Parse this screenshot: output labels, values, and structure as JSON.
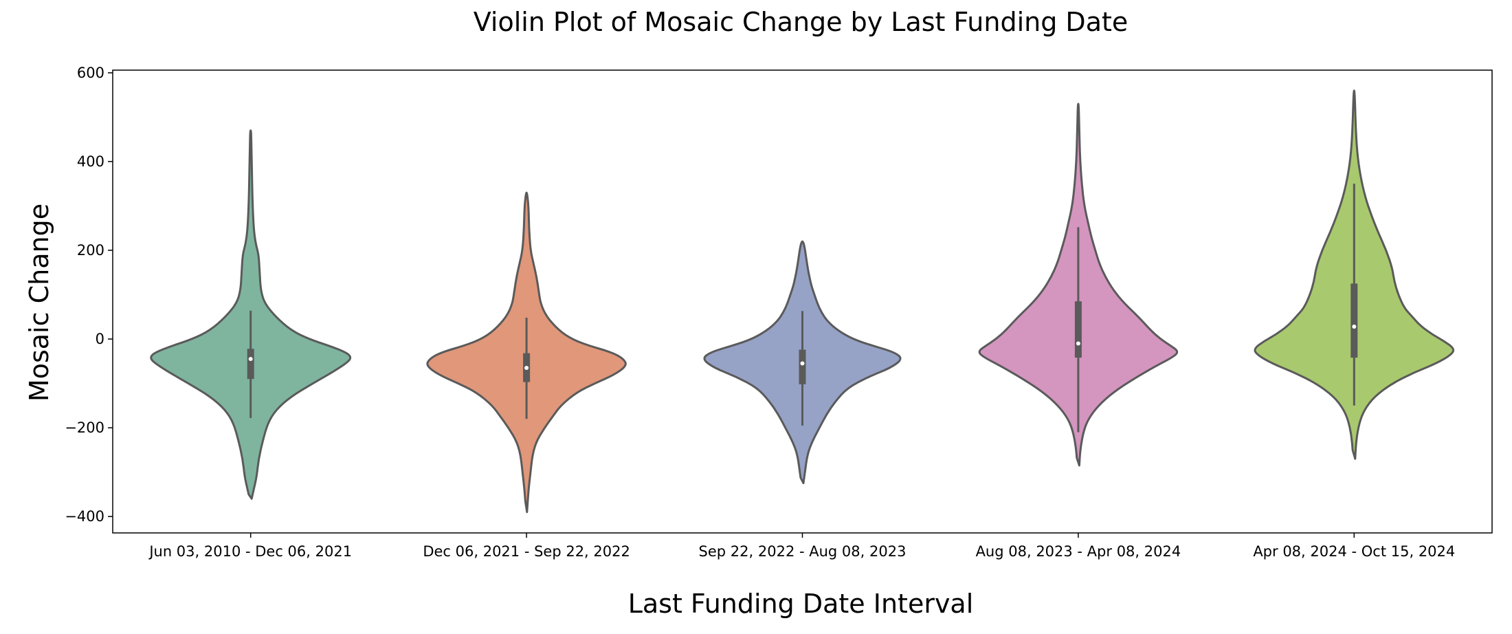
{
  "chart_data": {
    "type": "violin",
    "title": "Violin Plot of Mosaic Change by Last Funding Date",
    "xlabel": "Last Funding Date Interval",
    "ylabel": "Mosaic Change",
    "ylim": [
      -437,
      606
    ],
    "yticks": [
      -400,
      -200,
      0,
      200,
      400,
      600
    ],
    "ytick_labels": [
      "−400",
      "−200",
      "0",
      "200",
      "400",
      "600"
    ],
    "grid": false,
    "legend": "none",
    "categories": [
      "Jun 03, 2010 - Dec 06, 2021",
      "Dec 06, 2021 - Sep 22, 2022",
      "Sep 22, 2022 - Aug 08, 2023",
      "Aug 08, 2023 - Apr 08, 2024",
      "Apr 08, 2024 - Oct 15, 2024"
    ],
    "colors": [
      "#7fb59f",
      "#e0977a",
      "#96a2c6",
      "#d495bf",
      "#a9c96e"
    ],
    "line_color": "#5a5a5a",
    "violins": [
      {
        "min": -360,
        "max": 470,
        "q1": -90,
        "median": -45,
        "q3": -22,
        "whisker_low": -178,
        "whisker_high": 64,
        "profile": [
          [
            -360,
            0.01
          ],
          [
            -340,
            0.03
          ],
          [
            -310,
            0.06
          ],
          [
            -270,
            0.08
          ],
          [
            -230,
            0.12
          ],
          [
            -190,
            0.17
          ],
          [
            -160,
            0.25
          ],
          [
            -130,
            0.4
          ],
          [
            -100,
            0.62
          ],
          [
            -70,
            0.85
          ],
          [
            -50,
            0.98
          ],
          [
            -40,
            1.0
          ],
          [
            -30,
            0.95
          ],
          [
            -15,
            0.78
          ],
          [
            0,
            0.58
          ],
          [
            20,
            0.4
          ],
          [
            50,
            0.25
          ],
          [
            80,
            0.14
          ],
          [
            110,
            0.1
          ],
          [
            150,
            0.09
          ],
          [
            190,
            0.08
          ],
          [
            215,
            0.05
          ],
          [
            250,
            0.03
          ],
          [
            300,
            0.02
          ],
          [
            380,
            0.012
          ],
          [
            430,
            0.008
          ],
          [
            470,
            0.005
          ]
        ]
      },
      {
        "min": -390,
        "max": 330,
        "q1": -97,
        "median": -65,
        "q3": -32,
        "whisker_low": -180,
        "whisker_high": 48,
        "profile": [
          [
            -390,
            0.005
          ],
          [
            -340,
            0.02
          ],
          [
            -300,
            0.04
          ],
          [
            -260,
            0.06
          ],
          [
            -230,
            0.1
          ],
          [
            -200,
            0.18
          ],
          [
            -175,
            0.26
          ],
          [
            -150,
            0.34
          ],
          [
            -120,
            0.5
          ],
          [
            -100,
            0.68
          ],
          [
            -80,
            0.88
          ],
          [
            -60,
            1.0
          ],
          [
            -45,
            0.97
          ],
          [
            -30,
            0.85
          ],
          [
            -15,
            0.62
          ],
          [
            0,
            0.45
          ],
          [
            20,
            0.32
          ],
          [
            50,
            0.2
          ],
          [
            80,
            0.14
          ],
          [
            110,
            0.12
          ],
          [
            140,
            0.1
          ],
          [
            170,
            0.07
          ],
          [
            200,
            0.04
          ],
          [
            250,
            0.025
          ],
          [
            300,
            0.02
          ],
          [
            330,
            0.005
          ]
        ]
      },
      {
        "min": -325,
        "max": 220,
        "q1": -102,
        "median": -55,
        "q3": -24,
        "whisker_low": -195,
        "whisker_high": 63,
        "profile": [
          [
            -325,
            0.01
          ],
          [
            -300,
            0.025
          ],
          [
            -260,
            0.05
          ],
          [
            -230,
            0.1
          ],
          [
            -200,
            0.17
          ],
          [
            -170,
            0.24
          ],
          [
            -140,
            0.33
          ],
          [
            -110,
            0.45
          ],
          [
            -85,
            0.66
          ],
          [
            -65,
            0.88
          ],
          [
            -45,
            1.0
          ],
          [
            -30,
            0.92
          ],
          [
            -15,
            0.7
          ],
          [
            0,
            0.5
          ],
          [
            20,
            0.35
          ],
          [
            40,
            0.25
          ],
          [
            60,
            0.19
          ],
          [
            80,
            0.15
          ],
          [
            100,
            0.12
          ],
          [
            120,
            0.09
          ],
          [
            150,
            0.06
          ],
          [
            180,
            0.04
          ],
          [
            210,
            0.02
          ],
          [
            220,
            0.005
          ]
        ]
      },
      {
        "min": -285,
        "max": 530,
        "q1": -42,
        "median": -10,
        "q3": 85,
        "whisker_low": -210,
        "whisker_high": 252,
        "profile": [
          [
            -285,
            0.01
          ],
          [
            -250,
            0.02
          ],
          [
            -210,
            0.05
          ],
          [
            -180,
            0.1
          ],
          [
            -150,
            0.2
          ],
          [
            -120,
            0.35
          ],
          [
            -90,
            0.55
          ],
          [
            -60,
            0.78
          ],
          [
            -40,
            0.95
          ],
          [
            -28,
            1.0
          ],
          [
            -15,
            0.92
          ],
          [
            0,
            0.82
          ],
          [
            20,
            0.72
          ],
          [
            50,
            0.6
          ],
          [
            80,
            0.46
          ],
          [
            110,
            0.35
          ],
          [
            140,
            0.27
          ],
          [
            170,
            0.21
          ],
          [
            200,
            0.17
          ],
          [
            230,
            0.13
          ],
          [
            260,
            0.1
          ],
          [
            300,
            0.06
          ],
          [
            350,
            0.035
          ],
          [
            400,
            0.02
          ],
          [
            450,
            0.012
          ],
          [
            530,
            0.005
          ]
        ]
      },
      {
        "min": -270,
        "max": 560,
        "q1": -42,
        "median": 28,
        "q3": 125,
        "whisker_low": -150,
        "whisker_high": 350,
        "profile": [
          [
            -270,
            0.01
          ],
          [
            -230,
            0.02
          ],
          [
            -190,
            0.05
          ],
          [
            -160,
            0.1
          ],
          [
            -130,
            0.2
          ],
          [
            -100,
            0.38
          ],
          [
            -75,
            0.6
          ],
          [
            -55,
            0.82
          ],
          [
            -35,
            0.97
          ],
          [
            -22,
            1.0
          ],
          [
            -5,
            0.9
          ],
          [
            10,
            0.78
          ],
          [
            30,
            0.66
          ],
          [
            50,
            0.58
          ],
          [
            70,
            0.5
          ],
          [
            100,
            0.44
          ],
          [
            130,
            0.4
          ],
          [
            160,
            0.38
          ],
          [
            200,
            0.32
          ],
          [
            240,
            0.24
          ],
          [
            280,
            0.17
          ],
          [
            320,
            0.11
          ],
          [
            370,
            0.06
          ],
          [
            420,
            0.03
          ],
          [
            480,
            0.015
          ],
          [
            560,
            0.005
          ]
        ]
      }
    ]
  }
}
